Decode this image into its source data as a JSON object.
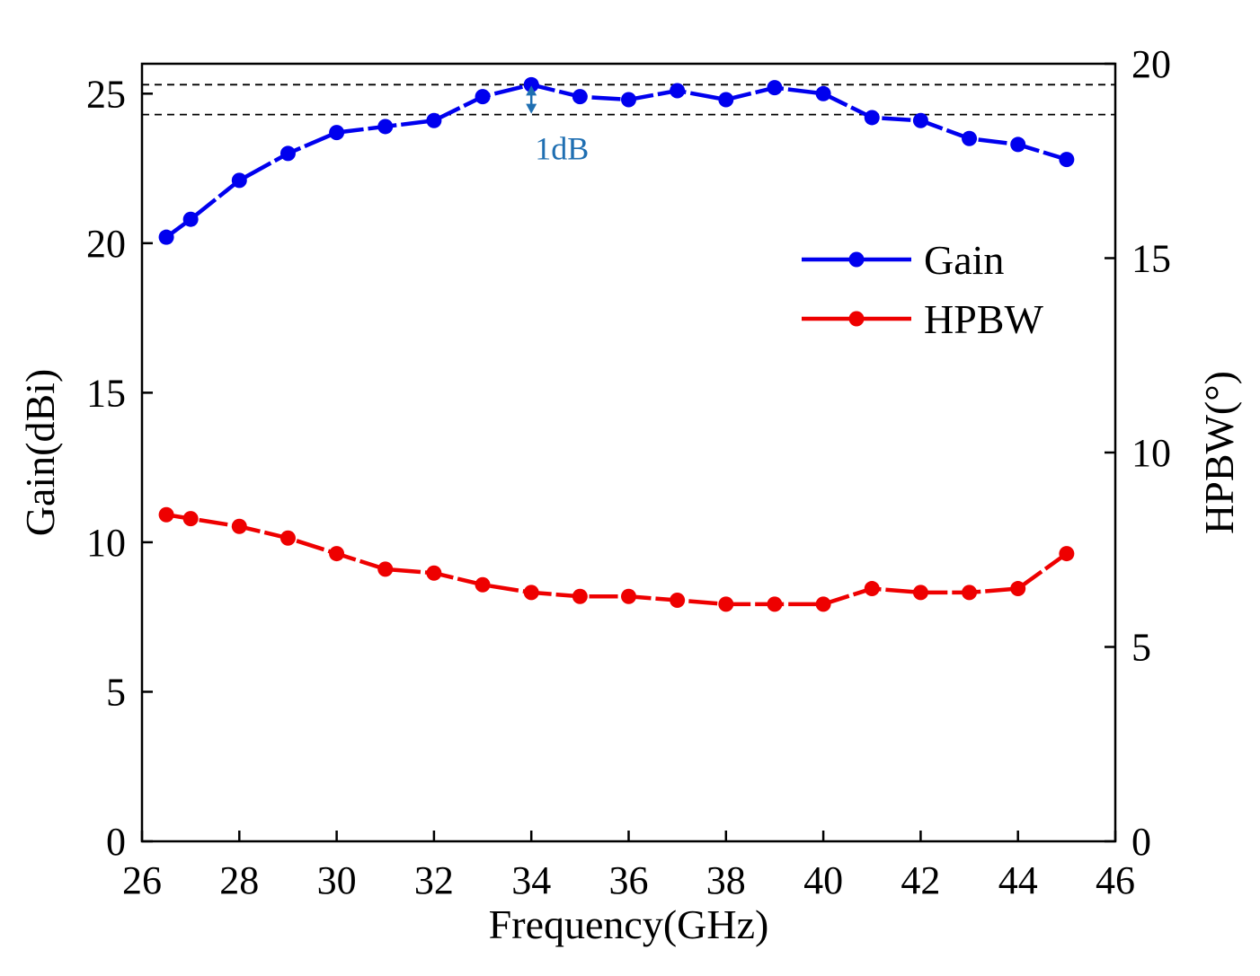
{
  "chart_data": {
    "type": "line",
    "title": "",
    "xlabel": "Frequency(GHz)",
    "ylabel_left": "Gain(dBi)",
    "ylabel_right": "HPBW(°)",
    "xlim": [
      26,
      46
    ],
    "ylim_left": [
      0,
      26
    ],
    "ylim_right": [
      0,
      20
    ],
    "x_ticks": [
      26,
      28,
      30,
      32,
      34,
      36,
      38,
      40,
      42,
      44,
      46
    ],
    "y_ticks_left": [
      0,
      5,
      10,
      15,
      20,
      25
    ],
    "y_ticks_right": [
      0,
      5,
      10,
      15,
      20
    ],
    "grid": false,
    "legend_position": "center-right",
    "x": [
      26.5,
      27,
      28,
      29,
      30,
      31,
      32,
      33,
      34,
      35,
      36,
      37,
      38,
      39,
      40,
      41,
      42,
      43,
      44,
      45
    ],
    "series": [
      {
        "name": "Gain",
        "axis": "left",
        "color": "#0000ee",
        "values": [
          20.2,
          20.8,
          22.1,
          23.0,
          23.7,
          23.9,
          24.1,
          24.9,
          25.3,
          24.9,
          24.8,
          25.1,
          24.8,
          25.2,
          25.0,
          24.2,
          24.1,
          23.5,
          23.3,
          22.8
        ]
      },
      {
        "name": "HPBW",
        "axis": "right",
        "color": "#ee0000",
        "values": [
          8.4,
          8.3,
          8.1,
          7.8,
          7.4,
          7.0,
          6.9,
          6.6,
          6.4,
          6.3,
          6.3,
          6.2,
          6.1,
          6.1,
          6.1,
          6.5,
          6.4,
          6.4,
          6.5,
          7.4
        ]
      }
    ],
    "reference_lines": [
      {
        "axis": "left",
        "value": 25.3,
        "style": "dashed"
      },
      {
        "axis": "left",
        "value": 24.3,
        "style": "dashed"
      }
    ],
    "annotation": {
      "text": "1dB",
      "x": 34,
      "from": 24.3,
      "to": 25.3,
      "color": "#1f6fb2"
    }
  }
}
